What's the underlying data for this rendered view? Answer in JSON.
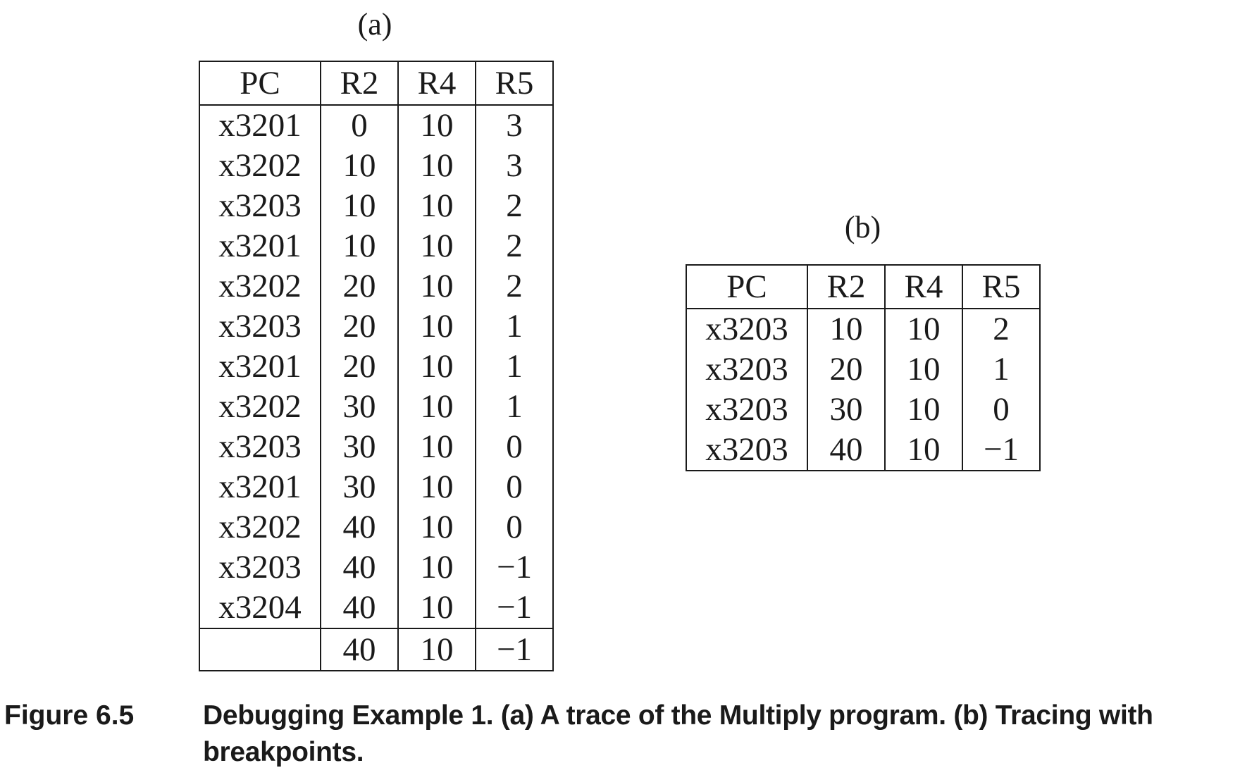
{
  "panel_a": {
    "label": "(a)",
    "headers": [
      "PC",
      "R2",
      "R4",
      "R5"
    ],
    "rows": [
      [
        "x3201",
        "0",
        "10",
        "3"
      ],
      [
        "x3202",
        "10",
        "10",
        "3"
      ],
      [
        "x3203",
        "10",
        "10",
        "2"
      ],
      [
        "x3201",
        "10",
        "10",
        "2"
      ],
      [
        "x3202",
        "20",
        "10",
        "2"
      ],
      [
        "x3203",
        "20",
        "10",
        "1"
      ],
      [
        "x3201",
        "20",
        "10",
        "1"
      ],
      [
        "x3202",
        "30",
        "10",
        "1"
      ],
      [
        "x3203",
        "30",
        "10",
        "0"
      ],
      [
        "x3201",
        "30",
        "10",
        "0"
      ],
      [
        "x3202",
        "40",
        "10",
        "0"
      ],
      [
        "x3203",
        "40",
        "10",
        "−1"
      ],
      [
        "x3204",
        "40",
        "10",
        "−1"
      ]
    ],
    "final_row": [
      "",
      "40",
      "10",
      "−1"
    ]
  },
  "panel_b": {
    "label": "(b)",
    "headers": [
      "PC",
      "R2",
      "R4",
      "R5"
    ],
    "rows": [
      [
        "x3203",
        "10",
        "10",
        "2"
      ],
      [
        "x3203",
        "20",
        "10",
        "1"
      ],
      [
        "x3203",
        "30",
        "10",
        "0"
      ],
      [
        "x3203",
        "40",
        "10",
        "−1"
      ]
    ]
  },
  "caption": {
    "figure_number": "Figure 6.5",
    "text": "Debugging Example 1. (a) A trace of the Multiply program. (b) Tracing with breakpoints."
  }
}
